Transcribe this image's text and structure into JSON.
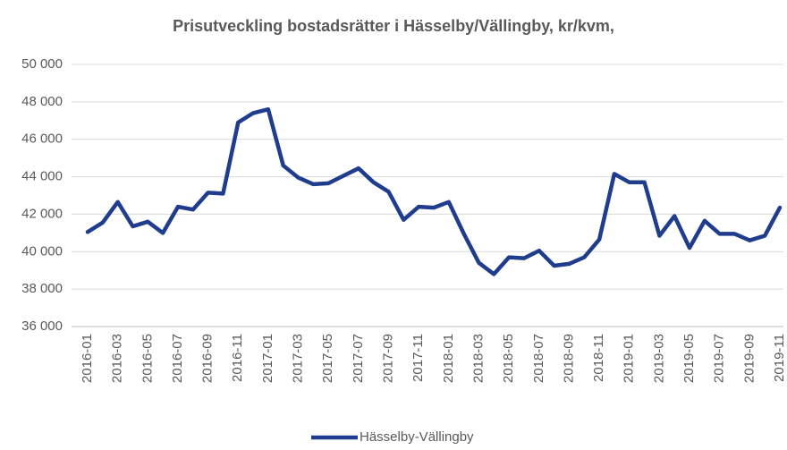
{
  "chart_data": {
    "type": "line",
    "title": "Prisutveckling bostadsrätter i Hässelby/Vällingby, kr/kvm,",
    "categories": [
      "2016-01",
      null,
      "2016-03",
      null,
      "2016-05",
      null,
      "2016-07",
      null,
      "2016-09",
      null,
      "2016-11",
      null,
      "2017-01",
      null,
      "2017-03",
      null,
      "2017-05",
      null,
      "2017-07",
      null,
      "2017-09",
      null,
      "2017-11",
      null,
      "2018-01",
      null,
      "2018-03",
      null,
      "2018-05",
      null,
      "2018-07",
      null,
      "2018-09",
      null,
      "2018-11",
      null,
      "2019-01",
      null,
      "2019-03",
      null,
      "2019-05",
      null,
      "2019-07",
      null,
      "2019-09",
      null,
      "2019-11"
    ],
    "series": [
      {
        "name": "Hässelby-Vällingby",
        "color": "#1f3d8c",
        "values": [
          41050,
          41550,
          42650,
          41350,
          41600,
          41000,
          42400,
          42250,
          43150,
          43100,
          46900,
          47400,
          47600,
          44600,
          43950,
          43600,
          43650,
          44050,
          44450,
          43700,
          43200,
          41700,
          42400,
          42350,
          42650,
          40950,
          39400,
          38800,
          39700,
          39650,
          40050,
          39250,
          39350,
          39700,
          40650,
          44150,
          43700,
          43700,
          40850,
          41900,
          40200,
          41650,
          40950,
          40950,
          40600,
          40850,
          42350
        ]
      }
    ],
    "ylim": [
      36000,
      50000
    ],
    "yticks": [
      {
        "value": 36000,
        "label": "36 000"
      },
      {
        "value": 38000,
        "label": "38 000"
      },
      {
        "value": 40000,
        "label": "40 000"
      },
      {
        "value": 42000,
        "label": "42 000"
      },
      {
        "value": 44000,
        "label": "44 000"
      },
      {
        "value": 46000,
        "label": "46 000"
      },
      {
        "value": 48000,
        "label": "48 000"
      },
      {
        "value": 50000,
        "label": "50 000"
      }
    ],
    "grid": true,
    "legend": "bottom"
  }
}
